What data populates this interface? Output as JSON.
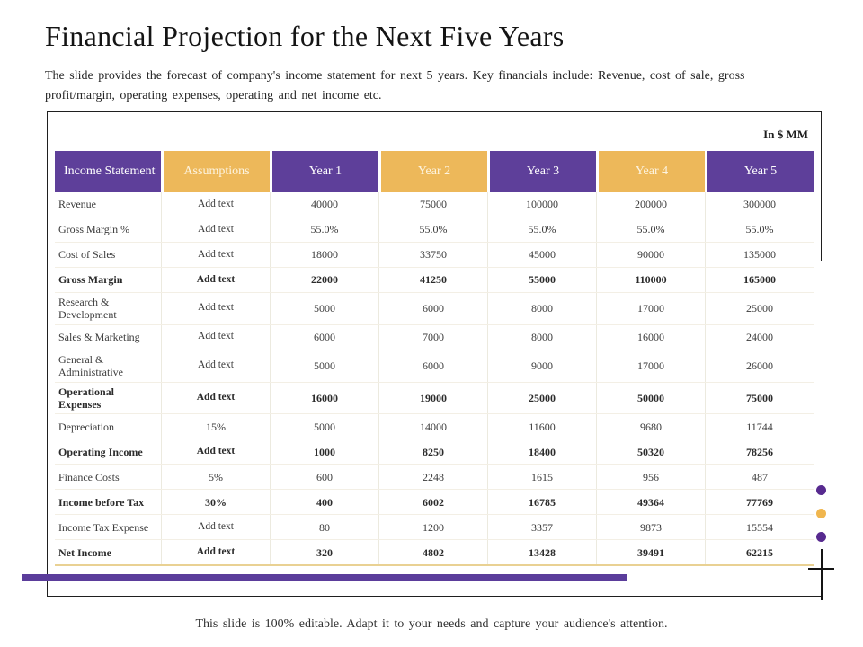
{
  "slide": {
    "title": "Financial Projection for the Next Five Years",
    "subtitle": "The slide provides the forecast of company's income statement  for next 5 years. Key financials include: Revenue,  cost of sale, gross profit/margin, operating  expenses,  operating  and net income etc.",
    "units_label": "In $ MM",
    "footer": "This slide is 100% editable.  Adapt it to your needs and capture  your audience's attention."
  },
  "table": {
    "columns": [
      {
        "label": "Income Statement",
        "color": "purple"
      },
      {
        "label": "Assumptions",
        "color": "yellow"
      },
      {
        "label": "Year 1",
        "color": "purple"
      },
      {
        "label": "Year 2",
        "color": "yellow"
      },
      {
        "label": "Year 3",
        "color": "purple"
      },
      {
        "label": "Year 4",
        "color": "yellow"
      },
      {
        "label": "Year 5",
        "color": "purple"
      }
    ],
    "rows": [
      {
        "label": "Revenue",
        "assumption": "Add text",
        "values": [
          "40000",
          "75000",
          "100000",
          "200000",
          "300000"
        ],
        "bold": false
      },
      {
        "label": "Gross Margin %",
        "assumption": "Add text",
        "values": [
          "55.0%",
          "55.0%",
          "55.0%",
          "55.0%",
          "55.0%"
        ],
        "bold": false
      },
      {
        "label": "Cost of Sales",
        "assumption": "Add text",
        "values": [
          "18000",
          "33750",
          "45000",
          "90000",
          "135000"
        ],
        "bold": false
      },
      {
        "label": "Gross Margin",
        "assumption": "Add text",
        "values": [
          "22000",
          "41250",
          "55000",
          "110000",
          "165000"
        ],
        "bold": true
      },
      {
        "label": "Research & Development",
        "assumption": "Add text",
        "values": [
          "5000",
          "6000",
          "8000",
          "17000",
          "25000"
        ],
        "bold": false
      },
      {
        "label": "Sales & Marketing",
        "assumption": "Add text",
        "values": [
          "6000",
          "7000",
          "8000",
          "16000",
          "24000"
        ],
        "bold": false
      },
      {
        "label": "General & Administrative",
        "assumption": "Add text",
        "values": [
          "5000",
          "6000",
          "9000",
          "17000",
          "26000"
        ],
        "bold": false
      },
      {
        "label": "Operational Expenses",
        "assumption": "Add text",
        "values": [
          "16000",
          "19000",
          "25000",
          "50000",
          "75000"
        ],
        "bold": true
      },
      {
        "label": "Depreciation",
        "assumption": "15%",
        "values": [
          "5000",
          "14000",
          "11600",
          "9680",
          "11744"
        ],
        "bold": false
      },
      {
        "label": "Operating Income",
        "assumption": "Add text",
        "values": [
          "1000",
          "8250",
          "18400",
          "50320",
          "78256"
        ],
        "bold": true
      },
      {
        "label": "Finance Costs",
        "assumption": "5%",
        "values": [
          "600",
          "2248",
          "1615",
          "956",
          "487"
        ],
        "bold": false
      },
      {
        "label": "Income before Tax",
        "assumption": "30%",
        "values": [
          "400",
          "6002",
          "16785",
          "49364",
          "77769"
        ],
        "bold": true
      },
      {
        "label": "Income Tax Expense",
        "assumption": "Add text",
        "values": [
          "80",
          "1200",
          "3357",
          "9873",
          "15554"
        ],
        "bold": false
      },
      {
        "label": "Net Income",
        "assumption": "Add text",
        "values": [
          "320",
          "4802",
          "13428",
          "39491",
          "62215"
        ],
        "bold": true
      }
    ]
  },
  "colors": {
    "header_purple": "#5e3f9a",
    "header_yellow": "#edb85a",
    "accent_bar_purple": "#5b3d9b",
    "dot_purple": "#572a8f",
    "dot_yellow": "#f0b64e",
    "net_income_underline": "#e9d193"
  },
  "decorations": {
    "dots": [
      "purple",
      "yellow",
      "purple"
    ]
  }
}
